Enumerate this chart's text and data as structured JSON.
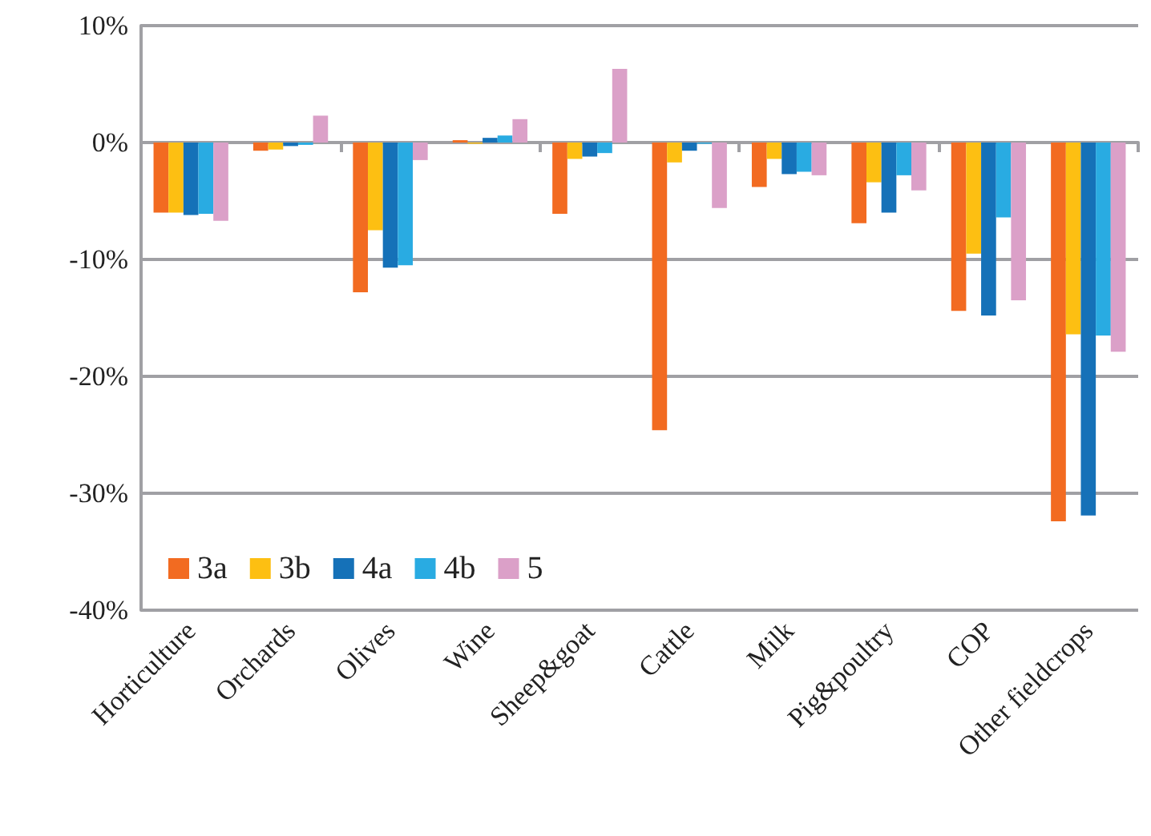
{
  "chart_data": {
    "type": "bar",
    "categories": [
      "Horticulture",
      "Orchards",
      "Olives",
      "Wine",
      "Sheep&goat",
      "Cattle",
      "Milk",
      "Pig&poultry",
      "COP",
      "Other fieldcrops"
    ],
    "series": [
      {
        "name": "3a",
        "color": "#f26b21",
        "values": [
          -6.0,
          -0.7,
          -12.8,
          0.2,
          -6.1,
          -24.6,
          -3.8,
          -6.9,
          -14.4,
          -32.4
        ]
      },
      {
        "name": "3b",
        "color": "#fdbf12",
        "values": [
          -6.0,
          -0.6,
          -7.5,
          -0.1,
          -1.4,
          -1.7,
          -1.4,
          -3.4,
          -9.5,
          -16.4
        ]
      },
      {
        "name": "4a",
        "color": "#1571b8",
        "values": [
          -6.2,
          -0.3,
          -10.7,
          0.4,
          -1.2,
          -0.7,
          -2.7,
          -6.0,
          -14.8,
          -31.9
        ]
      },
      {
        "name": "4b",
        "color": "#29abe2",
        "values": [
          -6.1,
          -0.2,
          -10.5,
          0.6,
          -0.9,
          -0.1,
          -2.5,
          -2.8,
          -6.4,
          -16.5
        ]
      },
      {
        "name": "5",
        "color": "#dba0c8",
        "values": [
          -6.7,
          2.3,
          -1.5,
          2.0,
          6.3,
          -5.6,
          -2.8,
          -4.1,
          -13.5,
          -17.9
        ]
      }
    ],
    "ylim": [
      -40,
      10
    ],
    "yticks": [
      {
        "value": -40,
        "label": "-40%"
      },
      {
        "value": -30,
        "label": "-30%"
      },
      {
        "value": -20,
        "label": "-20%"
      },
      {
        "value": -10,
        "label": "-10%"
      },
      {
        "value": 0,
        "label": "0%"
      },
      {
        "value": 10,
        "label": "10%"
      }
    ],
    "grid": "y",
    "legend": "bottom left"
  }
}
